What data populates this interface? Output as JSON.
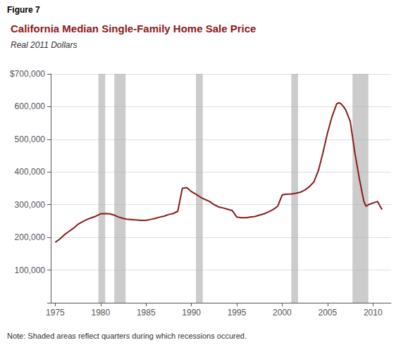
{
  "chart_data": {
    "type": "line",
    "figure_label": "Figure 7",
    "title": "California Median Single-Family Home Sale Price",
    "subtitle": "Real 2011 Dollars",
    "note": "Note: Shaded areas reflect quarters during which recessions occured.",
    "color": "#8b1a1a",
    "recession_color": "#aaaaaa",
    "recessions": [
      [
        1979.75,
        1980.5
      ],
      [
        1981.5,
        1982.75
      ],
      [
        1990.5,
        1991.25
      ],
      [
        2001.0,
        2001.75
      ],
      [
        2007.75,
        2009.5
      ]
    ],
    "x": [
      1975,
      1975.5,
      1976,
      1976.5,
      1977,
      1977.5,
      1978,
      1978.5,
      1979,
      1979.5,
      1980,
      1980.5,
      1981,
      1981.5,
      1982,
      1982.5,
      1983,
      1983.5,
      1984,
      1984.5,
      1985,
      1985.5,
      1986,
      1986.5,
      1987,
      1987.5,
      1988,
      1988.5,
      1989,
      1989.5,
      1990,
      1990.5,
      1991,
      1991.5,
      1992,
      1992.5,
      1993,
      1993.5,
      1994,
      1994.5,
      1995,
      1995.5,
      1996,
      1996.5,
      1997,
      1997.5,
      1998,
      1998.5,
      1999,
      1999.5,
      2000,
      2000.5,
      2001,
      2001.5,
      2002,
      2002.5,
      2003,
      2003.5,
      2004,
      2004.5,
      2005,
      2005.5,
      2006,
      2006.25,
      2006.5,
      2006.75,
      2007,
      2007.5,
      2008,
      2008.5,
      2009,
      2009.25,
      2009.5,
      2010,
      2010.5,
      2011
    ],
    "values": [
      185000,
      195000,
      208000,
      218000,
      228000,
      240000,
      248000,
      255000,
      260000,
      265000,
      272000,
      273000,
      272000,
      268000,
      262000,
      258000,
      255000,
      254000,
      253000,
      252000,
      252000,
      255000,
      258000,
      262000,
      265000,
      270000,
      273000,
      280000,
      350000,
      352000,
      340000,
      332000,
      323000,
      316000,
      310000,
      300000,
      293000,
      290000,
      286000,
      282000,
      262000,
      260000,
      260000,
      262000,
      264000,
      268000,
      272000,
      278000,
      285000,
      295000,
      330000,
      332000,
      333000,
      335000,
      338000,
      345000,
      355000,
      370000,
      405000,
      460000,
      520000,
      570000,
      608000,
      612000,
      608000,
      600000,
      590000,
      555000,
      460000,
      380000,
      310000,
      295000,
      300000,
      305000,
      310000,
      285000
    ],
    "xlim": [
      1974.5,
      2012
    ],
    "xticks": [
      1975,
      1980,
      1985,
      1990,
      1995,
      2000,
      2005,
      2010
    ],
    "ylim": [
      0,
      700000
    ],
    "yticks": [
      {
        "value": 0,
        "label": ""
      },
      {
        "value": 100000,
        "label": "100,000"
      },
      {
        "value": 200000,
        "label": "200,000"
      },
      {
        "value": 300000,
        "label": "300,000"
      },
      {
        "value": 400000,
        "label": "400,000"
      },
      {
        "value": 500000,
        "label": "500,000"
      },
      {
        "value": 600000,
        "label": "600,000"
      },
      {
        "value": 700000,
        "label": "$700,000"
      }
    ],
    "grid": true
  }
}
